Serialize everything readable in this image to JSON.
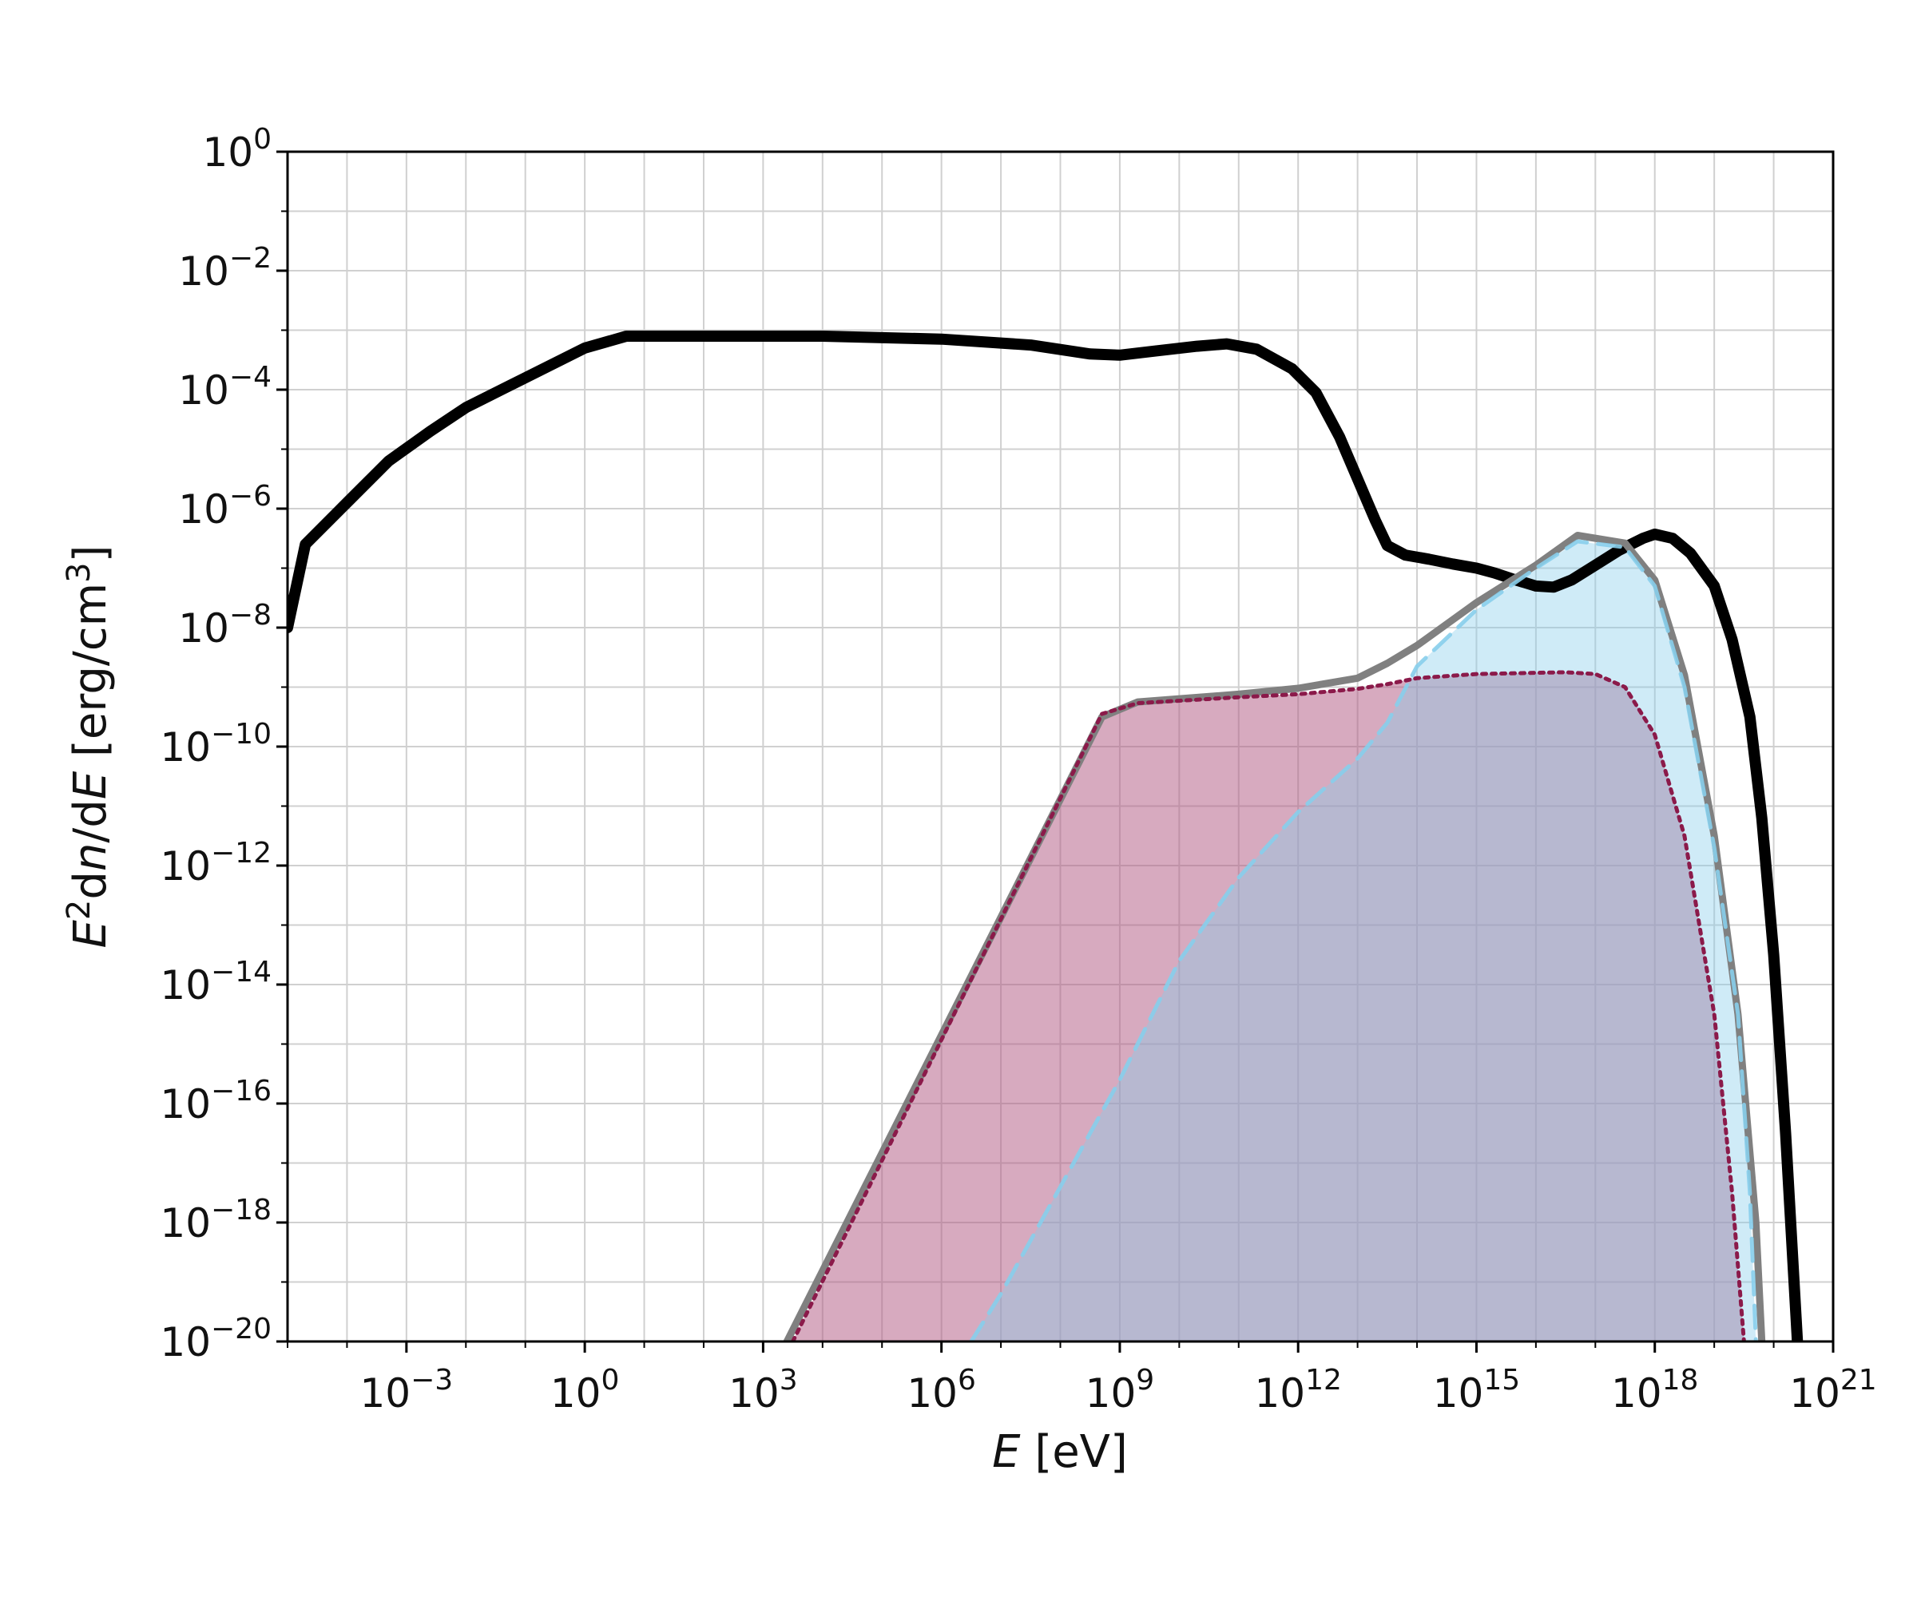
{
  "chart_data": {
    "type": "area",
    "xlabel": "E [eV]",
    "ylabel": "E²dn/dE [erg/cm³]",
    "xscale": "log",
    "yscale": "log",
    "xlim": [
      1e-05,
      1e+21
    ],
    "ylim": [
      1e-20,
      1
    ],
    "grid": true,
    "legend": "none",
    "x_ticks": [
      {
        "base": "10",
        "exp": "−3"
      },
      {
        "base": "10",
        "exp": "0"
      },
      {
        "base": "10",
        "exp": "3"
      },
      {
        "base": "10",
        "exp": "6"
      },
      {
        "base": "10",
        "exp": "9"
      },
      {
        "base": "10",
        "exp": "12"
      },
      {
        "base": "10",
        "exp": "15"
      },
      {
        "base": "10",
        "exp": "18"
      },
      {
        "base": "10",
        "exp": "21"
      }
    ],
    "y_ticks": [
      {
        "base": "10",
        "exp": "0"
      },
      {
        "base": "10",
        "exp": "−2"
      },
      {
        "base": "10",
        "exp": "−4"
      },
      {
        "base": "10",
        "exp": "−6"
      },
      {
        "base": "10",
        "exp": "−8"
      },
      {
        "base": "10",
        "exp": "−10"
      },
      {
        "base": "10",
        "exp": "−12"
      },
      {
        "base": "10",
        "exp": "−14"
      },
      {
        "base": "10",
        "exp": "−16"
      },
      {
        "base": "10",
        "exp": "−18"
      },
      {
        "base": "10",
        "exp": "−20"
      }
    ],
    "series": [
      {
        "style": "solid-thick",
        "color": "#000000",
        "filled": false,
        "log10x": [
          -5,
          -4.7,
          -4,
          -3.3,
          -2.6,
          -2,
          -1,
          0,
          0.7,
          2,
          4,
          6,
          7.5,
          8.5,
          9,
          9.6,
          10.3,
          10.8,
          11.3,
          11.9,
          12.3,
          12.7,
          13,
          13.3,
          13.5,
          13.8,
          14.2,
          14.6,
          15,
          15.3,
          15.6,
          16,
          16.3,
          16.6,
          17,
          17.4,
          17.8,
          18,
          18.3,
          18.6,
          19,
          19.3,
          19.6,
          19.8,
          20,
          20.2,
          20.4
        ],
        "log10y": [
          -8,
          -6.6,
          -5.9,
          -5.2,
          -4.7,
          -4.3,
          -3.8,
          -3.3,
          -3.1,
          -3.1,
          -3.1,
          -3.15,
          -3.25,
          -3.4,
          -3.42,
          -3.35,
          -3.27,
          -3.23,
          -3.32,
          -3.65,
          -4.05,
          -4.8,
          -5.5,
          -6.2,
          -6.62,
          -6.78,
          -6.85,
          -6.93,
          -7.0,
          -7.08,
          -7.18,
          -7.3,
          -7.32,
          -7.2,
          -6.95,
          -6.7,
          -6.5,
          -6.43,
          -6.5,
          -6.75,
          -7.3,
          -8.2,
          -9.5,
          -11.2,
          -13.5,
          -16.5,
          -20
        ]
      },
      {
        "style": "solid",
        "color": "#808080",
        "filled": false,
        "log10x": [
          3.4,
          8.7,
          9.3,
          11,
          12,
          13,
          13.5,
          14,
          15,
          16,
          16.7,
          17.5,
          18,
          18.5,
          19,
          19.4,
          19.7,
          19.8
        ],
        "log10y": [
          -20,
          -9.5,
          -9.25,
          -9.12,
          -9.02,
          -8.85,
          -8.6,
          -8.3,
          -7.58,
          -6.95,
          -6.45,
          -6.58,
          -7.2,
          -8.8,
          -11.5,
          -14.5,
          -18,
          -20
        ]
      },
      {
        "style": "dotted",
        "color": "#8b1a4a",
        "fill": "#b0557f",
        "fill_opacity": 0.5,
        "filled": true,
        "log10x": [
          3.5,
          8.7,
          9.3,
          11,
          12,
          13,
          13.5,
          14,
          15,
          16,
          16.5,
          17,
          17.5,
          18,
          18.5,
          19,
          19.3,
          19.5
        ],
        "log10y": [
          -20,
          -9.45,
          -9.27,
          -9.17,
          -9.12,
          -9.03,
          -8.95,
          -8.85,
          -8.78,
          -8.76,
          -8.75,
          -8.78,
          -9.0,
          -9.8,
          -11.5,
          -14.5,
          -17.5,
          -20
        ]
      },
      {
        "style": "dashed",
        "color": "#87ceeb",
        "fill": "#87ceeb",
        "fill_opacity": 0.4,
        "filled": true,
        "log10x": [
          6.5,
          7,
          8,
          9,
          10,
          11,
          12,
          13,
          13.5,
          14,
          15,
          16,
          16.7,
          17.5,
          18,
          18.5,
          19,
          19.4,
          19.6,
          19.7
        ],
        "log10y": [
          -20,
          -19.2,
          -17.4,
          -15.6,
          -13.6,
          -12.2,
          -11.1,
          -10.2,
          -9.6,
          -8.65,
          -7.7,
          -7.0,
          -6.55,
          -6.65,
          -7.3,
          -9.0,
          -11.7,
          -14.5,
          -17.5,
          -20
        ]
      }
    ]
  }
}
